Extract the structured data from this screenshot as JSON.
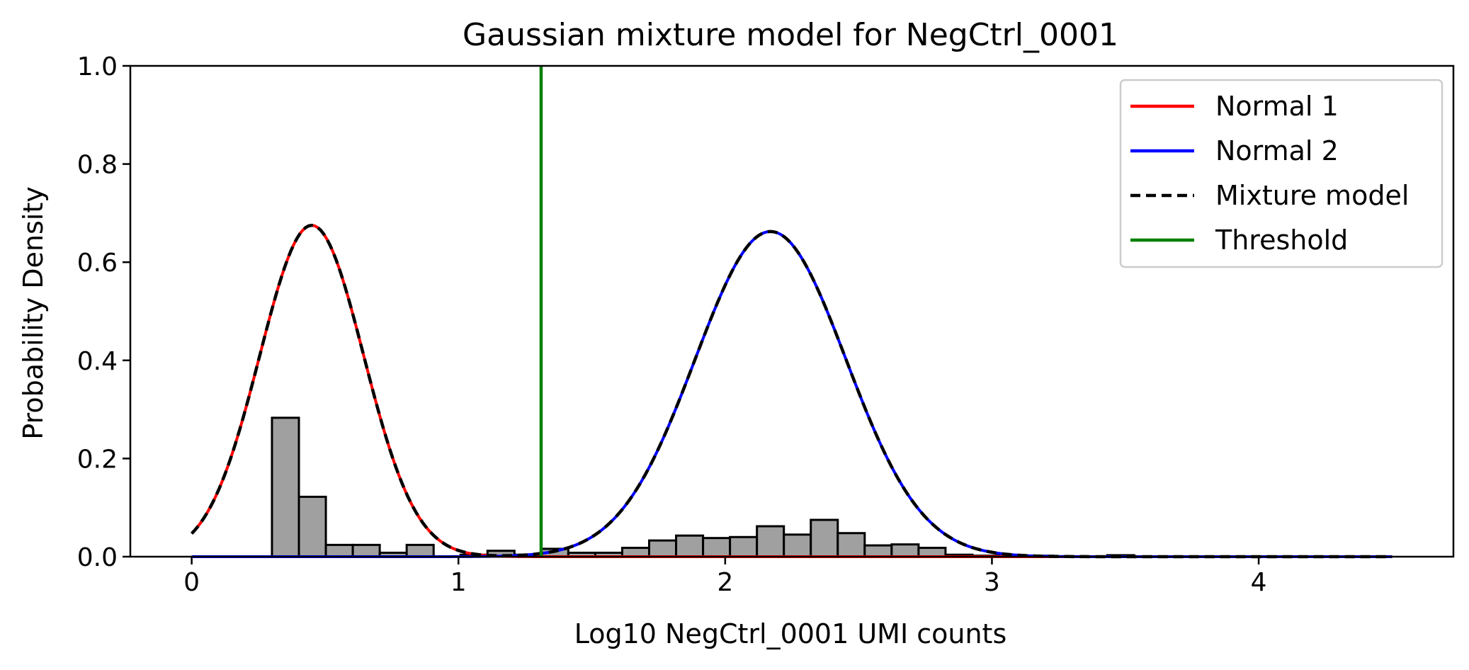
{
  "chart_data": {
    "type": "histogram+line",
    "title": "Gaussian mixture model for NegCtrl_0001",
    "xlabel": "Log10 NegCtrl_0001 UMI counts",
    "ylabel": "Probability Density",
    "xlim": [
      -0.23,
      4.73
    ],
    "ylim": [
      0,
      1.0
    ],
    "xticks": [
      0,
      1,
      2,
      3,
      4
    ],
    "yticks": [
      0.0,
      0.2,
      0.4,
      0.6,
      0.8,
      1.0
    ],
    "ytick_labels": [
      "0.0",
      "0.2",
      "0.4",
      "0.6",
      "0.8",
      "1.0"
    ],
    "legend_position": "top-right",
    "histogram": {
      "color": "#a0a0a0",
      "edgecolor": "#000000",
      "bin_edges": [
        0.301,
        0.402,
        0.503,
        0.604,
        0.705,
        0.806,
        0.907,
        1.008,
        1.109,
        1.21,
        1.311,
        1.412,
        1.513,
        1.614,
        1.715,
        1.816,
        1.917,
        2.018,
        2.119,
        2.22,
        2.321,
        2.422,
        2.523,
        2.624,
        2.725,
        2.826,
        2.927,
        3.028,
        3.129,
        3.23,
        3.331,
        3.432,
        3.533
      ],
      "values": [
        0.283,
        0.122,
        0.024,
        0.024,
        0.008,
        0.024,
        0.0,
        0.004,
        0.012,
        0.004,
        0.016,
        0.008,
        0.008,
        0.018,
        0.033,
        0.043,
        0.038,
        0.04,
        0.062,
        0.045,
        0.075,
        0.048,
        0.023,
        0.025,
        0.018,
        0.004,
        0.002,
        0.001,
        0.002,
        0.0,
        0.0,
        0.003
      ]
    },
    "components": [
      {
        "name": "Normal 1",
        "color": "#ff0000",
        "weight": 0.33,
        "mean": 0.45,
        "sd": 0.195
      },
      {
        "name": "Normal 2",
        "color": "#0000ff",
        "weight": 0.47,
        "mean": 2.17,
        "sd": 0.283
      }
    ],
    "curve_x_range": [
      0,
      4.5
    ],
    "series": [
      {
        "name": "Normal 1",
        "color": "#ff0000",
        "style": "solid"
      },
      {
        "name": "Normal 2",
        "color": "#0000ff",
        "style": "solid"
      },
      {
        "name": "Mixture model",
        "color": "#000000",
        "style": "dashed"
      },
      {
        "name": "Threshold",
        "color": "#008000",
        "style": "solid"
      }
    ],
    "threshold": 1.31
  }
}
